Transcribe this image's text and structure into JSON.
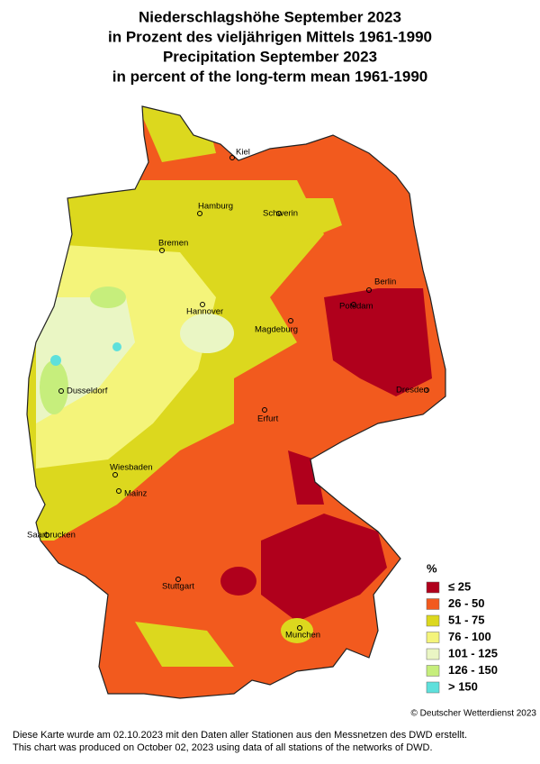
{
  "title": [
    "Niederschlagshöhe September 2023",
    "in Prozent des vieljährigen Mittels 1961-1990",
    "Precipitation September 2023",
    "in percent of the long-term mean 1961-1990"
  ],
  "cities": [
    "Kiel",
    "Hamburg",
    "Schwerin",
    "Bremen",
    "Berlin",
    "Potsdam",
    "Hannover",
    "Magdeburg",
    "Dusseldorf",
    "Dresden",
    "Erfurt",
    "Wiesbaden",
    "Mainz",
    "Saarbrucken",
    "Stuttgart",
    "Munchen"
  ],
  "legend": {
    "unit": "%",
    "entries": [
      {
        "label": "≤  25",
        "color": "#b0001c"
      },
      {
        "label": "26 - 50",
        "color": "#f25a1e"
      },
      {
        "label": "51 - 75",
        "color": "#dcd81e"
      },
      {
        "label": "76 - 100",
        "color": "#f4f47a"
      },
      {
        "label": "101 - 125",
        "color": "#eaf6c4"
      },
      {
        "label": "126 - 150",
        "color": "#c6ee7c"
      },
      {
        "label": "> 150",
        "color": "#5ee0dc"
      }
    ]
  },
  "copyright": "© Deutscher Wetterdienst 2023",
  "footer": [
    "Diese Karte wurde am 02.10.2023 mit den Daten aller Stationen aus den Messnetzen des DWD erstellt.",
    "This chart was produced on October 02, 2023 using data of all stations of the networks of DWD."
  ]
}
